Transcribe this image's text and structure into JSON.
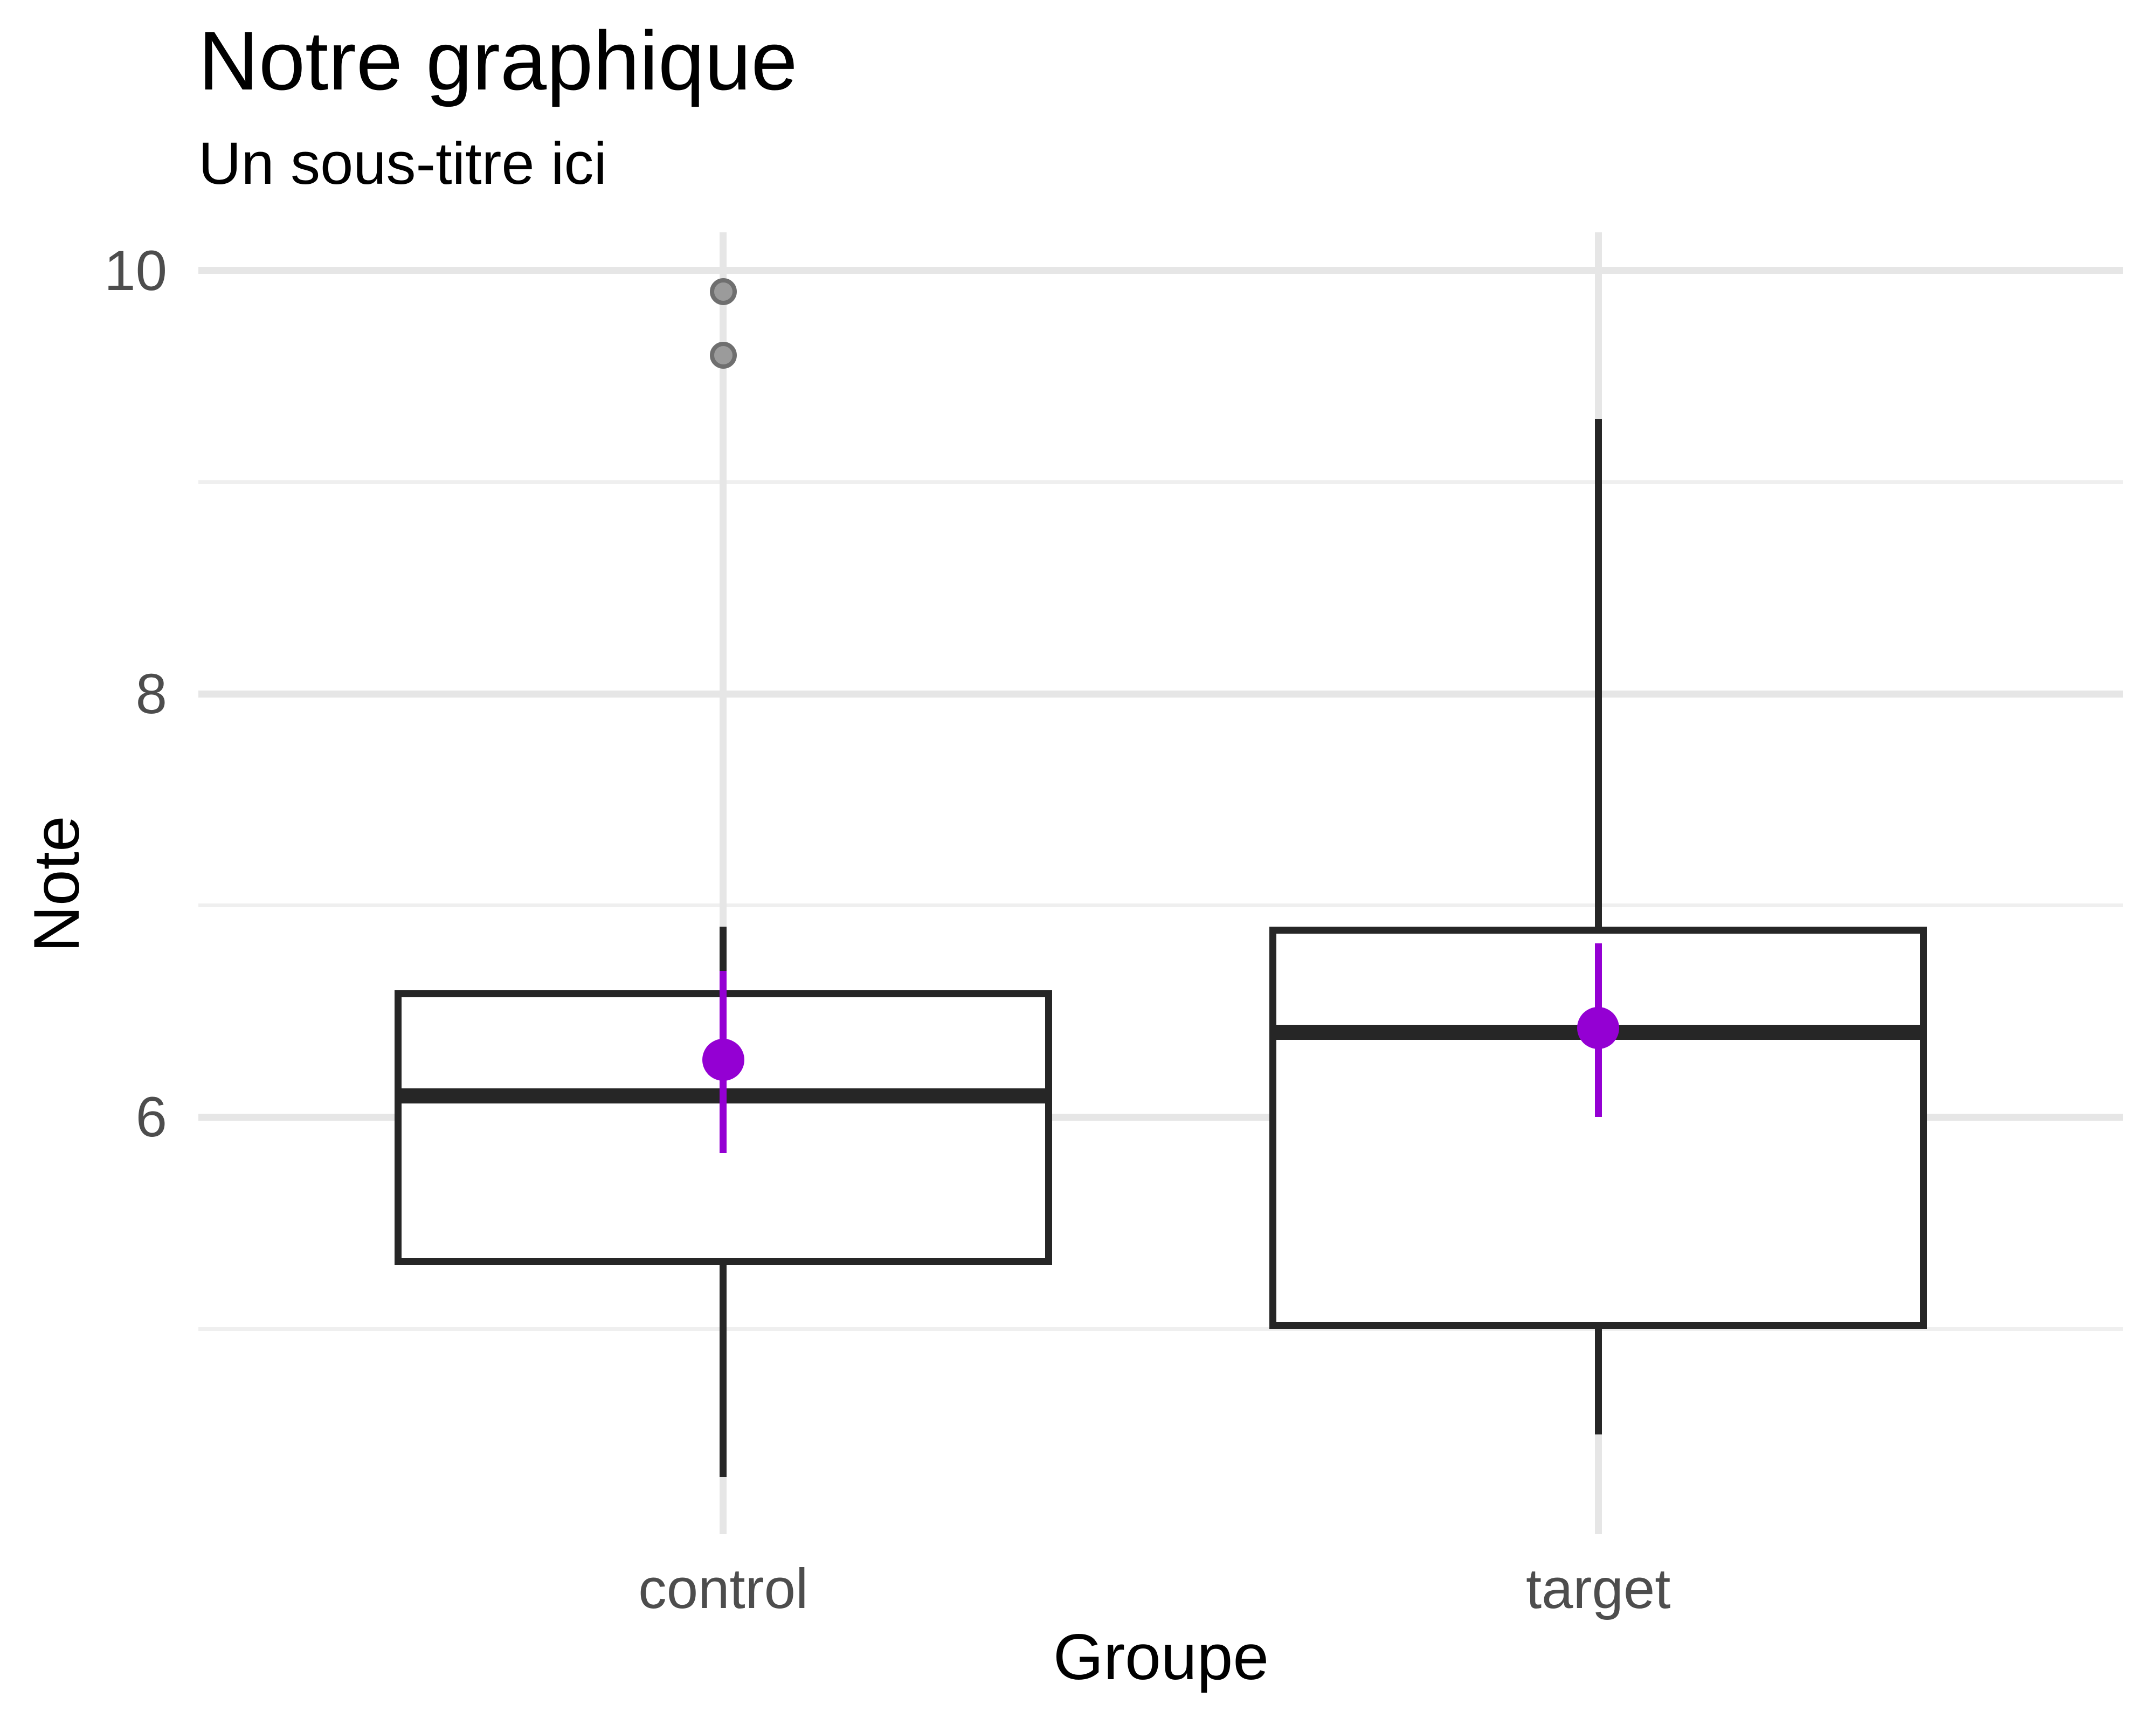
{
  "header": {
    "title": "Notre graphique",
    "subtitle": "Un sous-titre ici"
  },
  "axes": {
    "y_title": "Note",
    "x_title": "Groupe",
    "y_tick_labels": [
      "10",
      "8",
      "6"
    ],
    "x_tick_labels": [
      "control",
      "target"
    ]
  },
  "style": {
    "background": "#ffffff",
    "grid_major_color": "#e6e6e6",
    "grid_minor_color": "#efefef",
    "box_stroke_color": "#262626",
    "box_fill_color": "#ffffff",
    "mean_color": "#9400d3",
    "outlier_fill_color": "#9b9b9b",
    "outlier_stroke_color": "#6f6f6f",
    "tick_text_color": "#4d4d4d",
    "title_text_color": "#000000"
  },
  "chart_data": {
    "type": "boxplot",
    "title": "Notre graphique",
    "subtitle": "Un sous-titre ici",
    "xlabel": "Groupe",
    "ylabel": "Note",
    "ylim": [
      4.03,
      10.18
    ],
    "y_major_gridlines": [
      10,
      8,
      6
    ],
    "y_minor_gridlines": [
      9,
      7,
      5
    ],
    "grid": true,
    "legend": false,
    "categories": [
      "control",
      "target"
    ],
    "groups": [
      {
        "label": "control",
        "whisker_low": 4.3,
        "q1": 5.3,
        "median": 6.1,
        "q3": 6.6,
        "whisker_high": 6.9,
        "outliers": [
          9.9,
          9.6
        ],
        "mean": 6.27,
        "ci_low": 5.83,
        "ci_high": 6.69
      },
      {
        "label": "target",
        "whisker_low": 4.5,
        "q1": 5.0,
        "median": 6.4,
        "q3": 6.9,
        "whisker_high": 9.3,
        "outliers": [],
        "mean": 6.42,
        "ci_low": 6.0,
        "ci_high": 6.82
      }
    ]
  }
}
